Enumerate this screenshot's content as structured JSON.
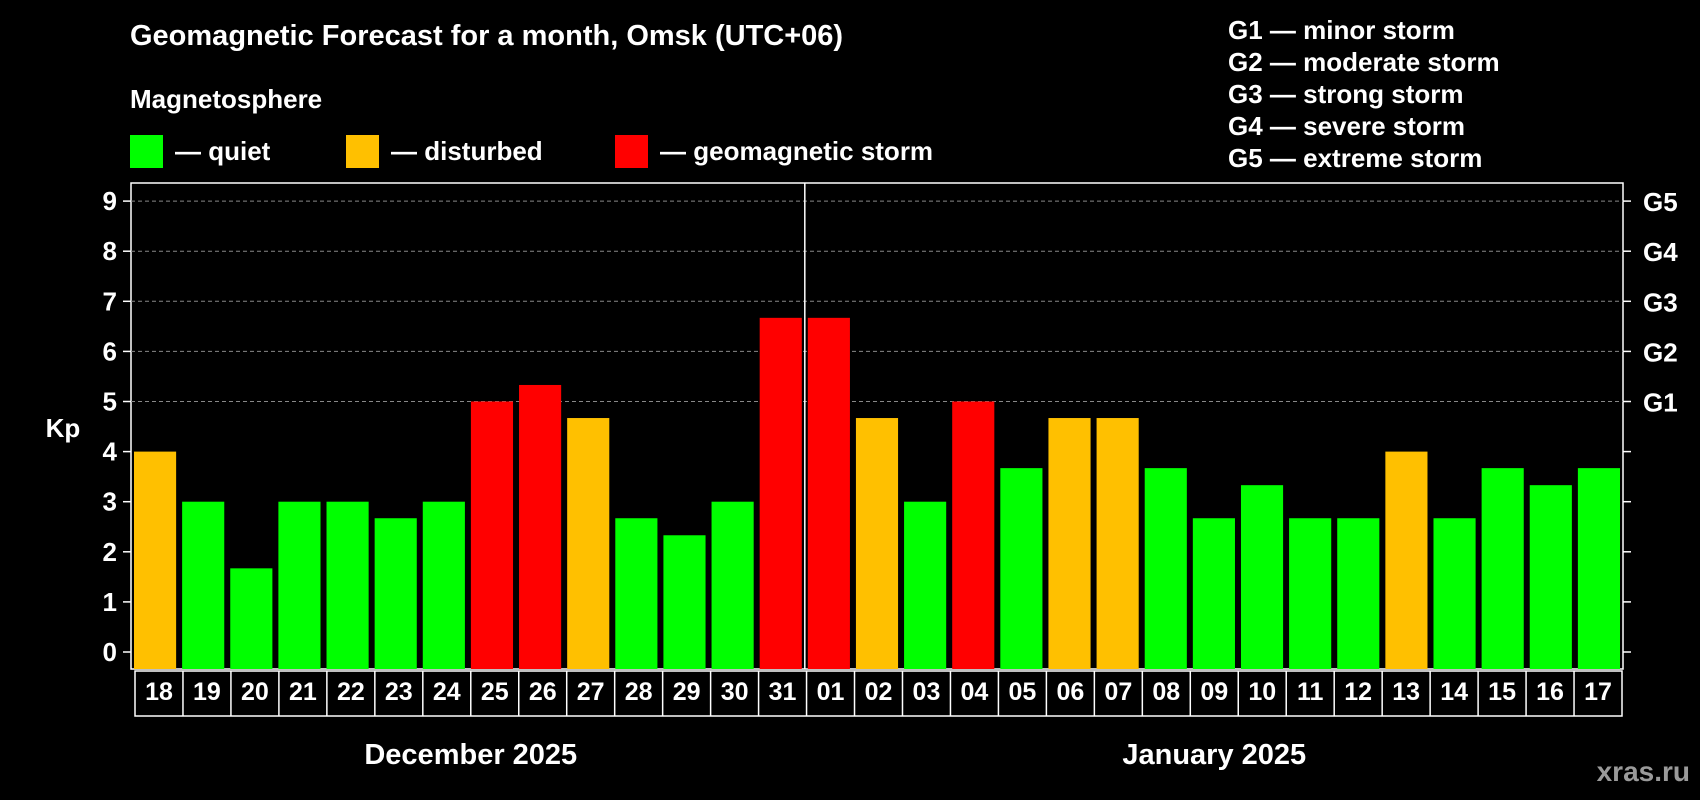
{
  "title": "Geomagnetic Forecast for a month, Omsk (UTC+06)",
  "legend": {
    "heading": "Magnetosphere",
    "items": [
      {
        "label": "— quiet",
        "color": "#00ff00"
      },
      {
        "label": "— disturbed",
        "color": "#ffc000"
      },
      {
        "label": "— geomagnetic storm",
        "color": "#ff0000"
      }
    ]
  },
  "storm_levels": [
    "G1 — minor storm",
    "G2 — moderate storm",
    "G3 — strong storm",
    "G4 — severe storm",
    "G5 — extreme storm"
  ],
  "watermark": "xras.ru",
  "chart_data": {
    "type": "bar",
    "ylabel": "Kp",
    "ylim": [
      0,
      9
    ],
    "y_ticks": [
      0,
      1,
      2,
      3,
      4,
      5,
      6,
      7,
      8,
      9
    ],
    "right_axis_labels": [
      {
        "value": 5,
        "label": "G1"
      },
      {
        "value": 6,
        "label": "G2"
      },
      {
        "value": 7,
        "label": "G3"
      },
      {
        "value": 8,
        "label": "G4"
      },
      {
        "value": 9,
        "label": "G5"
      }
    ],
    "categories": [
      "18",
      "19",
      "20",
      "21",
      "22",
      "23",
      "24",
      "25",
      "26",
      "27",
      "28",
      "29",
      "30",
      "31",
      "01",
      "02",
      "03",
      "04",
      "05",
      "06",
      "07",
      "08",
      "09",
      "10",
      "11",
      "12",
      "13",
      "14",
      "15",
      "16",
      "17"
    ],
    "values": [
      4.0,
      3.0,
      1.67,
      3.0,
      3.0,
      2.67,
      3.0,
      5.0,
      5.33,
      4.67,
      2.67,
      2.33,
      3.0,
      6.67,
      6.67,
      4.67,
      3.0,
      5.0,
      3.67,
      4.67,
      4.67,
      3.67,
      2.67,
      3.33,
      2.67,
      2.67,
      4.0,
      2.67,
      3.67,
      3.33,
      3.67
    ],
    "levels": [
      "disturbed",
      "quiet",
      "quiet",
      "quiet",
      "quiet",
      "quiet",
      "quiet",
      "storm",
      "storm",
      "disturbed",
      "quiet",
      "quiet",
      "quiet",
      "storm",
      "storm",
      "disturbed",
      "quiet",
      "storm",
      "quiet",
      "disturbed",
      "disturbed",
      "quiet",
      "quiet",
      "quiet",
      "quiet",
      "quiet",
      "disturbed",
      "quiet",
      "quiet",
      "quiet",
      "quiet"
    ],
    "level_colors": {
      "quiet": "#00ff00",
      "disturbed": "#ffc000",
      "storm": "#ff0000"
    },
    "months": [
      {
        "label": "December 2025",
        "start": 0,
        "end": 13
      },
      {
        "label": "January 2025",
        "start": 14,
        "end": 30
      }
    ],
    "month_divider_after": 13
  }
}
